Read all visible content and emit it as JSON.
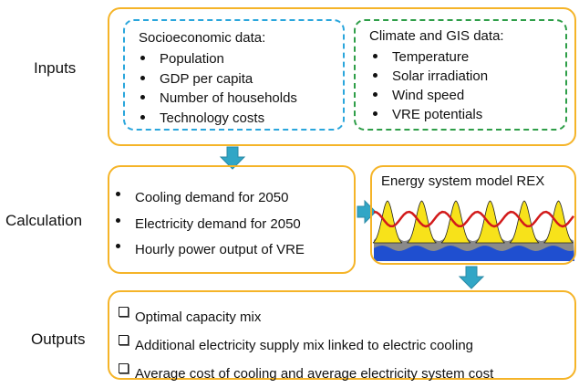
{
  "labels": {
    "inputs": "Inputs",
    "calculation": "Calculation",
    "outputs": "Outputs"
  },
  "inputs": {
    "socioeconomic": {
      "title": "Socioeconomic data:",
      "items": [
        "Population",
        "GDP per capita",
        "Number of households",
        "Technology costs"
      ]
    },
    "climate": {
      "title": "Climate and GIS data:",
      "items": [
        "Temperature",
        "Solar irradiation",
        "Wind speed",
        "VRE potentials"
      ]
    }
  },
  "calculation": {
    "items": [
      "Cooling demand for 2050",
      "Electricity demand for 2050",
      "Hourly power output of VRE"
    ],
    "model": {
      "title": "Energy system model REX"
    }
  },
  "outputs": {
    "items": [
      "Optimal capacity mix",
      "Additional electricity supply mix linked to electric cooling",
      "Average cost of cooling and average electricity system cost"
    ]
  }
}
